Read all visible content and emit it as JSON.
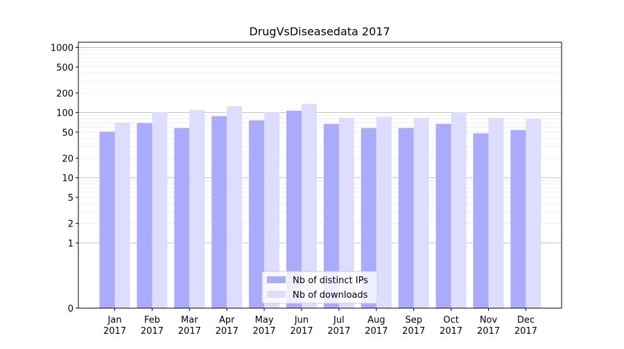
{
  "chart_data": {
    "type": "bar",
    "title": "DrugVsDiseasedata 2017",
    "xlabel": "",
    "ylabel": "",
    "yscale": "symlog",
    "ylim": [
      0,
      1200
    ],
    "yticks": [
      0,
      1,
      2,
      5,
      10,
      20,
      50,
      100,
      200,
      500,
      1000
    ],
    "ytick_labels": [
      "0",
      "1",
      "2",
      "5",
      "10",
      "20",
      "50",
      "100",
      "200",
      "500",
      "1000"
    ],
    "categories": [
      [
        "Jan",
        "2017"
      ],
      [
        "Feb",
        "2017"
      ],
      [
        "Mar",
        "2017"
      ],
      [
        "Apr",
        "2017"
      ],
      [
        "May",
        "2017"
      ],
      [
        "Jun",
        "2017"
      ],
      [
        "Jul",
        "2017"
      ],
      [
        "Aug",
        "2017"
      ],
      [
        "Sep",
        "2017"
      ],
      [
        "Oct",
        "2017"
      ],
      [
        "Nov",
        "2017"
      ],
      [
        "Dec",
        "2017"
      ]
    ],
    "series": [
      {
        "name": "Nb of distinct IPs",
        "color": "#aaaaff",
        "values": [
          51,
          69,
          58,
          88,
          76,
          107,
          67,
          58,
          58,
          67,
          48,
          54
        ]
      },
      {
        "name": "Nb of downloads",
        "color": "#ddddff",
        "values": [
          70,
          102,
          110,
          125,
          100,
          135,
          83,
          86,
          83,
          102,
          83,
          81
        ]
      }
    ],
    "grid": true,
    "legend_position": "bottom-center"
  }
}
